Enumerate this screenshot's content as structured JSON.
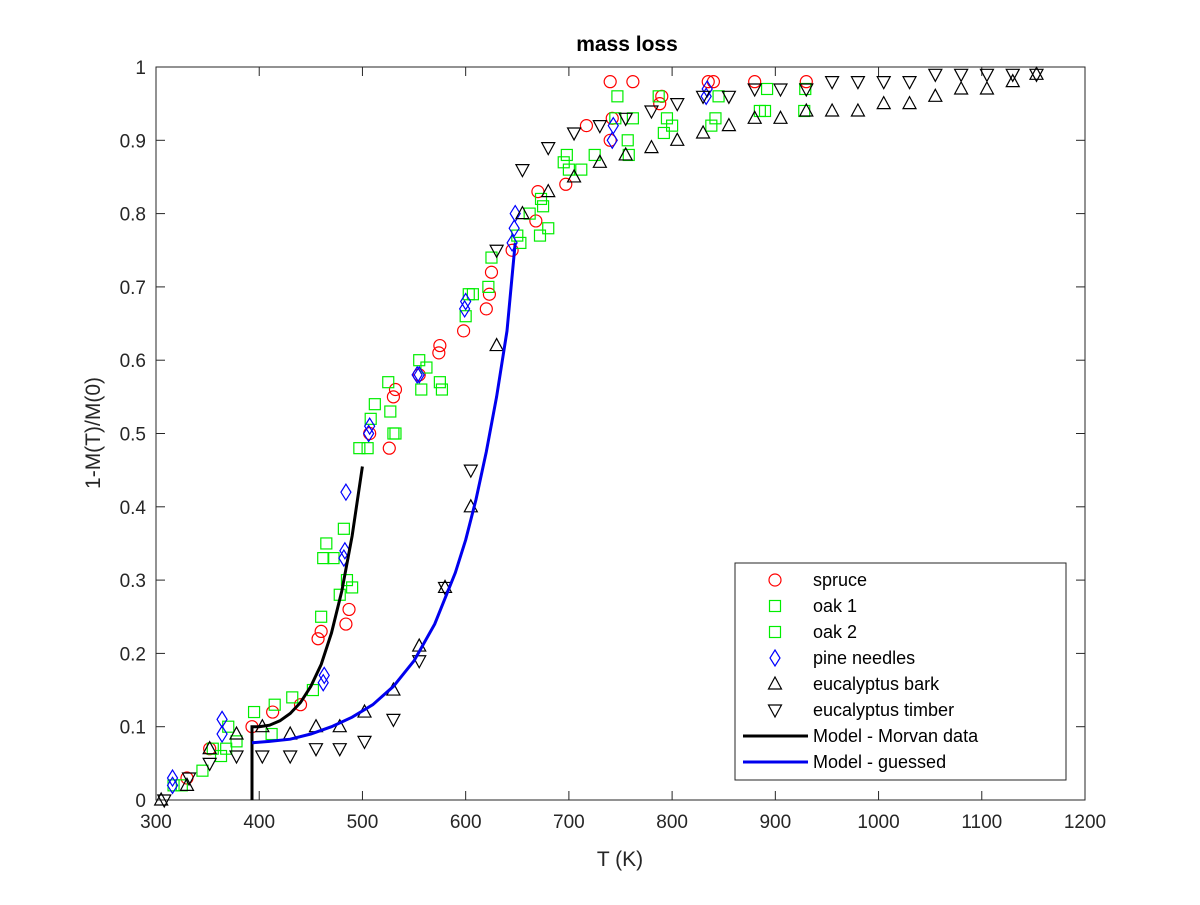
{
  "chart_data": {
    "type": "scatter",
    "title": "mass loss",
    "xlabel": "T (K)",
    "ylabel": "1-M(T)/M(0)",
    "xlim": [
      300,
      1200
    ],
    "ylim": [
      0,
      1
    ],
    "xticks": [
      300,
      400,
      500,
      600,
      700,
      800,
      900,
      1000,
      1100,
      1200
    ],
    "yticks": [
      0,
      0.1,
      0.2,
      0.3,
      0.4,
      0.5,
      0.6,
      0.7,
      0.8,
      0.9,
      1
    ],
    "xtick_labels": [
      "300",
      "400",
      "500",
      "600",
      "700",
      "800",
      "900",
      "1000",
      "1100",
      "1200"
    ],
    "ytick_labels": [
      "0",
      "0.1",
      "0.2",
      "0.3",
      "0.4",
      "0.5",
      "0.6",
      "0.7",
      "0.8",
      "0.9",
      "1"
    ],
    "grid": false,
    "legend_position": "bottom-right",
    "series": [
      {
        "name": "spruce",
        "marker": "circle",
        "color": "#ff0000",
        "points": [
          [
            352,
            0.07
          ],
          [
            330,
            0.03
          ],
          [
            393,
            0.1
          ],
          [
            413,
            0.12
          ],
          [
            440,
            0.13
          ],
          [
            457,
            0.22
          ],
          [
            460,
            0.23
          ],
          [
            484,
            0.24
          ],
          [
            487,
            0.26
          ],
          [
            507,
            0.5
          ],
          [
            526,
            0.48
          ],
          [
            530,
            0.55
          ],
          [
            532,
            0.56
          ],
          [
            555,
            0.58
          ],
          [
            574,
            0.61
          ],
          [
            575,
            0.62
          ],
          [
            598,
            0.64
          ],
          [
            620,
            0.67
          ],
          [
            623,
            0.69
          ],
          [
            625,
            0.72
          ],
          [
            645,
            0.75
          ],
          [
            668,
            0.79
          ],
          [
            670,
            0.83
          ],
          [
            697,
            0.84
          ],
          [
            717,
            0.92
          ],
          [
            740,
            0.9
          ],
          [
            742,
            0.93
          ],
          [
            740,
            0.98
          ],
          [
            762,
            0.98
          ],
          [
            788,
            0.95
          ],
          [
            790,
            0.96
          ],
          [
            835,
            0.98
          ],
          [
            840,
            0.98
          ],
          [
            880,
            0.98
          ],
          [
            930,
            0.98
          ]
        ]
      },
      {
        "name": "oak 1",
        "marker": "square",
        "color": "#00ee00",
        "points": [
          [
            317,
            0.02
          ],
          [
            325,
            0.02
          ],
          [
            355,
            0.07
          ],
          [
            363,
            0.06
          ],
          [
            370,
            0.1
          ],
          [
            378,
            0.08
          ],
          [
            395,
            0.12
          ],
          [
            415,
            0.13
          ],
          [
            432,
            0.14
          ],
          [
            460,
            0.25
          ],
          [
            462,
            0.33
          ],
          [
            465,
            0.35
          ],
          [
            472,
            0.33
          ],
          [
            478,
            0.28
          ],
          [
            482,
            0.37
          ],
          [
            485,
            0.3
          ],
          [
            490,
            0.29
          ],
          [
            505,
            0.48
          ],
          [
            508,
            0.52
          ],
          [
            512,
            0.54
          ],
          [
            525,
            0.57
          ],
          [
            527,
            0.53
          ],
          [
            530,
            0.5
          ],
          [
            555,
            0.6
          ],
          [
            557,
            0.56
          ],
          [
            575,
            0.57
          ],
          [
            577,
            0.56
          ],
          [
            600,
            0.66
          ],
          [
            603,
            0.69
          ],
          [
            622,
            0.7
          ],
          [
            625,
            0.74
          ],
          [
            650,
            0.77
          ],
          [
            653,
            0.76
          ],
          [
            672,
            0.77
          ],
          [
            673,
            0.82
          ],
          [
            675,
            0.81
          ],
          [
            680,
            0.78
          ],
          [
            695,
            0.87
          ],
          [
            698,
            0.88
          ],
          [
            712,
            0.86
          ],
          [
            725,
            0.88
          ],
          [
            745,
            0.93
          ],
          [
            747,
            0.96
          ],
          [
            757,
            0.9
          ],
          [
            762,
            0.93
          ],
          [
            787,
            0.96
          ],
          [
            795,
            0.93
          ],
          [
            800,
            0.92
          ],
          [
            838,
            0.92
          ],
          [
            842,
            0.93
          ],
          [
            885,
            0.94
          ],
          [
            892,
            0.97
          ]
        ]
      },
      {
        "name": "oak 2",
        "marker": "square",
        "color": "#00ee00",
        "points": [
          [
            345,
            0.04
          ],
          [
            368,
            0.07
          ],
          [
            412,
            0.09
          ],
          [
            452,
            0.15
          ],
          [
            497,
            0.48
          ],
          [
            532,
            0.5
          ],
          [
            562,
            0.59
          ],
          [
            607,
            0.69
          ],
          [
            662,
            0.8
          ],
          [
            700,
            0.86
          ],
          [
            758,
            0.88
          ],
          [
            792,
            0.91
          ],
          [
            845,
            0.96
          ],
          [
            890,
            0.94
          ],
          [
            928,
            0.94
          ],
          [
            929,
            0.97
          ]
        ]
      },
      {
        "name": "pine needles",
        "marker": "diamond",
        "color": "#0000ff",
        "points": [
          [
            316,
            0.02
          ],
          [
            316,
            0.03
          ],
          [
            364,
            0.09
          ],
          [
            364,
            0.11
          ],
          [
            462,
            0.16
          ],
          [
            463,
            0.17
          ],
          [
            482,
            0.33
          ],
          [
            483,
            0.34
          ],
          [
            484,
            0.42
          ],
          [
            506,
            0.5
          ],
          [
            507,
            0.51
          ],
          [
            553,
            0.58
          ],
          [
            555,
            0.58
          ],
          [
            599,
            0.67
          ],
          [
            600,
            0.68
          ],
          [
            645,
            0.76
          ],
          [
            647,
            0.78
          ],
          [
            648,
            0.8
          ],
          [
            742,
            0.9
          ],
          [
            743,
            0.92
          ],
          [
            833,
            0.96
          ],
          [
            834,
            0.97
          ]
        ]
      },
      {
        "name": "eucalyptus bark",
        "marker": "triangle-up",
        "color": "#000000",
        "points": [
          [
            305,
            0.0
          ],
          [
            330,
            0.02
          ],
          [
            352,
            0.07
          ],
          [
            378,
            0.09
          ],
          [
            403,
            0.1
          ],
          [
            430,
            0.09
          ],
          [
            455,
            0.1
          ],
          [
            478,
            0.1
          ],
          [
            502,
            0.12
          ],
          [
            530,
            0.15
          ],
          [
            555,
            0.21
          ],
          [
            580,
            0.29
          ],
          [
            605,
            0.4
          ],
          [
            630,
            0.62
          ],
          [
            655,
            0.8
          ],
          [
            680,
            0.83
          ],
          [
            705,
            0.85
          ],
          [
            730,
            0.87
          ],
          [
            755,
            0.88
          ],
          [
            780,
            0.89
          ],
          [
            805,
            0.9
          ],
          [
            830,
            0.91
          ],
          [
            855,
            0.92
          ],
          [
            880,
            0.93
          ],
          [
            905,
            0.93
          ],
          [
            930,
            0.94
          ],
          [
            955,
            0.94
          ],
          [
            980,
            0.94
          ],
          [
            1005,
            0.95
          ],
          [
            1030,
            0.95
          ],
          [
            1055,
            0.96
          ],
          [
            1080,
            0.97
          ],
          [
            1105,
            0.97
          ],
          [
            1130,
            0.98
          ],
          [
            1153,
            0.99
          ]
        ]
      },
      {
        "name": "eucalyptus timber",
        "marker": "triangle-down",
        "color": "#000000",
        "points": [
          [
            308,
            0.0
          ],
          [
            332,
            0.03
          ],
          [
            352,
            0.05
          ],
          [
            378,
            0.06
          ],
          [
            403,
            0.06
          ],
          [
            430,
            0.06
          ],
          [
            455,
            0.07
          ],
          [
            478,
            0.07
          ],
          [
            502,
            0.08
          ],
          [
            530,
            0.11
          ],
          [
            555,
            0.19
          ],
          [
            580,
            0.29
          ],
          [
            605,
            0.45
          ],
          [
            630,
            0.75
          ],
          [
            655,
            0.86
          ],
          [
            680,
            0.89
          ],
          [
            705,
            0.91
          ],
          [
            730,
            0.92
          ],
          [
            755,
            0.93
          ],
          [
            780,
            0.94
          ],
          [
            805,
            0.95
          ],
          [
            830,
            0.96
          ],
          [
            855,
            0.96
          ],
          [
            880,
            0.97
          ],
          [
            905,
            0.97
          ],
          [
            930,
            0.97
          ],
          [
            955,
            0.98
          ],
          [
            980,
            0.98
          ],
          [
            1005,
            0.98
          ],
          [
            1030,
            0.98
          ],
          [
            1055,
            0.99
          ],
          [
            1080,
            0.99
          ],
          [
            1105,
            0.99
          ],
          [
            1130,
            0.99
          ],
          [
            1153,
            0.99
          ]
        ]
      },
      {
        "name": "Model - Morvan data",
        "marker": "line",
        "color": "#000000",
        "points": [
          [
            393,
            0.0
          ],
          [
            393,
            0.1
          ],
          [
            400,
            0.1
          ],
          [
            410,
            0.102
          ],
          [
            420,
            0.108
          ],
          [
            430,
            0.118
          ],
          [
            440,
            0.133
          ],
          [
            450,
            0.155
          ],
          [
            460,
            0.185
          ],
          [
            470,
            0.228
          ],
          [
            480,
            0.285
          ],
          [
            490,
            0.36
          ],
          [
            500,
            0.455
          ]
        ]
      },
      {
        "name": "Model - guessed",
        "marker": "line",
        "color": "#0000ee",
        "points": [
          [
            393,
            0.078
          ],
          [
            410,
            0.08
          ],
          [
            430,
            0.083
          ],
          [
            450,
            0.09
          ],
          [
            470,
            0.1
          ],
          [
            490,
            0.113
          ],
          [
            510,
            0.13
          ],
          [
            530,
            0.155
          ],
          [
            550,
            0.19
          ],
          [
            570,
            0.24
          ],
          [
            590,
            0.31
          ],
          [
            600,
            0.355
          ],
          [
            610,
            0.41
          ],
          [
            620,
            0.475
          ],
          [
            630,
            0.55
          ],
          [
            640,
            0.64
          ],
          [
            648,
            0.76
          ]
        ]
      }
    ]
  }
}
